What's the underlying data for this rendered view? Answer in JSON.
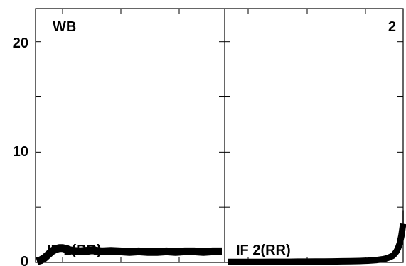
{
  "chart_data": {
    "type": "line",
    "y_ticks": [
      "0",
      "10",
      "20"
    ],
    "ylim": [
      0,
      23
    ],
    "grid": false,
    "colors": {
      "line": "#000000",
      "background": "#ffffff"
    },
    "panels": [
      {
        "corner_label": "WB",
        "series": [
          {
            "label": "IF 1(RR)",
            "x": [
              0,
              0.02,
              0.04,
              0.06,
              0.08,
              0.1,
              0.12,
              0.14,
              0.16,
              0.18,
              0.2,
              0.23,
              0.26,
              0.3,
              0.35,
              0.4,
              0.45,
              0.5,
              0.55,
              0.6,
              0.65,
              0.7,
              0.75,
              0.8,
              0.85,
              0.9,
              0.95,
              1.0
            ],
            "y": [
              0.1,
              0.2,
              0.4,
              0.7,
              1.0,
              1.2,
              1.3,
              1.3,
              1.2,
              1.1,
              1.05,
              1.0,
              1.05,
              1.1,
              1.0,
              1.05,
              1.0,
              0.95,
              1.0,
              0.95,
              0.95,
              1.0,
              0.95,
              1.0,
              1.0,
              0.95,
              1.0,
              1.0
            ]
          }
        ]
      },
      {
        "corner_label": "2",
        "series": [
          {
            "label": "IF 2(RR)",
            "x": [
              0,
              0.05,
              0.1,
              0.15,
              0.2,
              0.25,
              0.3,
              0.35,
              0.4,
              0.45,
              0.5,
              0.55,
              0.6,
              0.65,
              0.7,
              0.75,
              0.8,
              0.85,
              0.88,
              0.9,
              0.92,
              0.94,
              0.95,
              0.96,
              0.97,
              0.98,
              0.99,
              1.0
            ],
            "y": [
              0.05,
              0.05,
              0.05,
              0.05,
              0.05,
              0.06,
              0.06,
              0.06,
              0.07,
              0.07,
              0.08,
              0.08,
              0.09,
              0.1,
              0.11,
              0.13,
              0.16,
              0.22,
              0.28,
              0.35,
              0.45,
              0.6,
              0.75,
              0.95,
              1.25,
              1.7,
              2.4,
              3.5
            ]
          }
        ]
      }
    ]
  }
}
